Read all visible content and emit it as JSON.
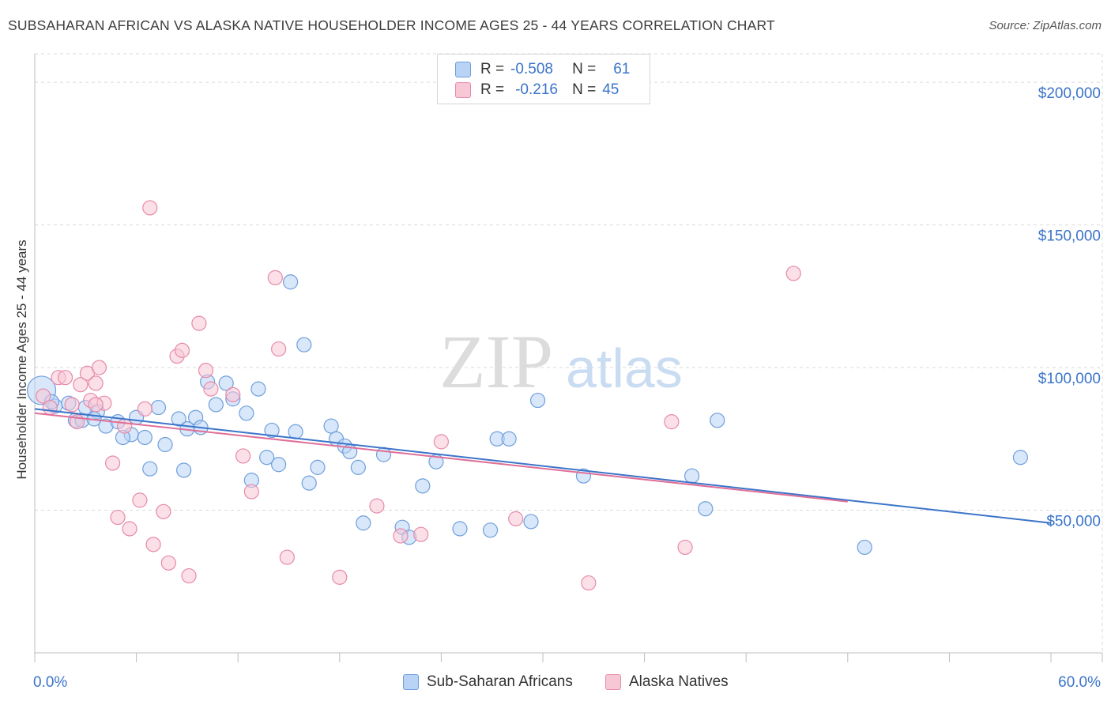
{
  "title": "SUBSAHARAN AFRICAN VS ALASKA NATIVE HOUSEHOLDER INCOME AGES 25 - 44 YEARS CORRELATION CHART",
  "source": "Source: ZipAtlas.com",
  "watermark": {
    "zip": "ZIP",
    "atlas": "atlas"
  },
  "legend": {
    "r_label": "R =",
    "n_label": "N =",
    "rows": [
      {
        "r": "-0.508",
        "n": "61"
      },
      {
        "r": "-0.216",
        "n": "45"
      }
    ]
  },
  "bottom_legend": {
    "series1": "Sub-Saharan Africans",
    "series2": "Alaska Natives"
  },
  "colors": {
    "blue": "#3b74c9",
    "blue_fill": "#b8d3f5",
    "pink": "#e06f98",
    "pink_fill": "#f8c7d6",
    "value_text": "#3b74c9",
    "grid": "#d9d9d9"
  },
  "chart_data": {
    "type": "scatter",
    "title": "SUBSAHARAN AFRICAN VS ALASKA NATIVE HOUSEHOLDER INCOME AGES 25 - 44 YEARS CORRELATION CHART",
    "xlabel": "",
    "ylabel": "Householder Income Ages 25 - 44 years",
    "xlim": [
      0,
      60
    ],
    "ylim": [
      0,
      210000
    ],
    "x_tick_labels": [
      "0.0%",
      "60.0%"
    ],
    "y_ticks": [
      50000,
      100000,
      150000,
      200000
    ],
    "y_tick_labels": [
      "$50,000",
      "$100,000",
      "$150,000",
      "$200,000"
    ],
    "grid": true,
    "legend_position": "top-center",
    "series": [
      {
        "name": "Sub-Saharan Africans",
        "color": "#3b74c9",
        "trend": {
          "x": [
            0,
            60
          ],
          "y": [
            85500,
            45500
          ]
        },
        "points": [
          [
            0.4,
            92000,
            "L"
          ],
          [
            1.2,
            86500
          ],
          [
            2.0,
            87500
          ],
          [
            2.4,
            81500
          ],
          [
            2.8,
            81500
          ],
          [
            3.7,
            84500
          ],
          [
            3.5,
            82000
          ],
          [
            4.2,
            79500
          ],
          [
            4.9,
            81000
          ],
          [
            6.0,
            82500
          ],
          [
            5.7,
            76500
          ],
          [
            5.2,
            75500
          ],
          [
            6.5,
            75500
          ],
          [
            7.3,
            86000
          ],
          [
            6.8,
            64500
          ],
          [
            7.7,
            73000
          ],
          [
            8.5,
            82000
          ],
          [
            8.8,
            64000
          ],
          [
            9.5,
            82500
          ],
          [
            9.8,
            79000
          ],
          [
            10.2,
            95000
          ],
          [
            10.7,
            87000
          ],
          [
            11.3,
            94500
          ],
          [
            11.7,
            89000
          ],
          [
            12.5,
            84000
          ],
          [
            13.2,
            92500
          ],
          [
            12.8,
            60500
          ],
          [
            13.7,
            68500
          ],
          [
            14.0,
            78000
          ],
          [
            14.4,
            66000
          ],
          [
            15.1,
            130000
          ],
          [
            15.4,
            77500
          ],
          [
            15.9,
            108000
          ],
          [
            16.2,
            59500
          ],
          [
            16.7,
            65000
          ],
          [
            17.5,
            79500
          ],
          [
            17.8,
            75000
          ],
          [
            18.3,
            72500
          ],
          [
            18.6,
            70500
          ],
          [
            19.1,
            65000
          ],
          [
            19.4,
            45500
          ],
          [
            20.6,
            69500
          ],
          [
            21.7,
            44000
          ],
          [
            22.1,
            40500
          ],
          [
            22.9,
            58500
          ],
          [
            23.7,
            67000
          ],
          [
            25.1,
            43500
          ],
          [
            26.9,
            43000
          ],
          [
            27.3,
            75000
          ],
          [
            28.0,
            75000
          ],
          [
            29.3,
            46000
          ],
          [
            29.7,
            88500
          ],
          [
            32.4,
            62000
          ],
          [
            38.8,
            62000
          ],
          [
            39.6,
            50500
          ],
          [
            40.3,
            81500
          ],
          [
            49.0,
            37000
          ],
          [
            58.2,
            68500
          ],
          [
            1.0,
            88000
          ],
          [
            9.0,
            78500
          ],
          [
            3.0,
            86000
          ]
        ]
      },
      {
        "name": "Alaska Natives",
        "color": "#e06f98",
        "trend": {
          "x": [
            0,
            48
          ],
          "y": [
            84000,
            53000
          ]
        },
        "points": [
          [
            0.5,
            90000
          ],
          [
            0.9,
            86000
          ],
          [
            1.4,
            96500
          ],
          [
            1.8,
            96500
          ],
          [
            2.2,
            87000
          ],
          [
            2.5,
            81000
          ],
          [
            2.7,
            94000
          ],
          [
            3.1,
            98000
          ],
          [
            3.3,
            88500
          ],
          [
            3.6,
            94500
          ],
          [
            3.8,
            100000
          ],
          [
            4.1,
            87500
          ],
          [
            4.6,
            66500
          ],
          [
            4.9,
            47500
          ],
          [
            5.3,
            79500
          ],
          [
            5.6,
            43500
          ],
          [
            6.2,
            53500
          ],
          [
            6.5,
            85500
          ],
          [
            7.0,
            38000
          ],
          [
            7.6,
            49500
          ],
          [
            7.9,
            31500
          ],
          [
            8.4,
            104000
          ],
          [
            8.7,
            106000
          ],
          [
            9.1,
            27000
          ],
          [
            9.7,
            115500
          ],
          [
            10.1,
            99000
          ],
          [
            10.4,
            92500
          ],
          [
            6.8,
            156000
          ],
          [
            11.7,
            90500
          ],
          [
            12.3,
            69000
          ],
          [
            12.8,
            56500
          ],
          [
            14.2,
            131500
          ],
          [
            14.4,
            106500
          ],
          [
            14.9,
            33500
          ],
          [
            18.0,
            26500
          ],
          [
            20.2,
            51500
          ],
          [
            21.6,
            41000
          ],
          [
            22.8,
            41500
          ],
          [
            24.0,
            74000
          ],
          [
            28.4,
            47000
          ],
          [
            32.7,
            24500
          ],
          [
            37.6,
            81000
          ],
          [
            38.4,
            37000
          ],
          [
            44.8,
            133000
          ],
          [
            3.6,
            87000
          ]
        ]
      }
    ]
  }
}
